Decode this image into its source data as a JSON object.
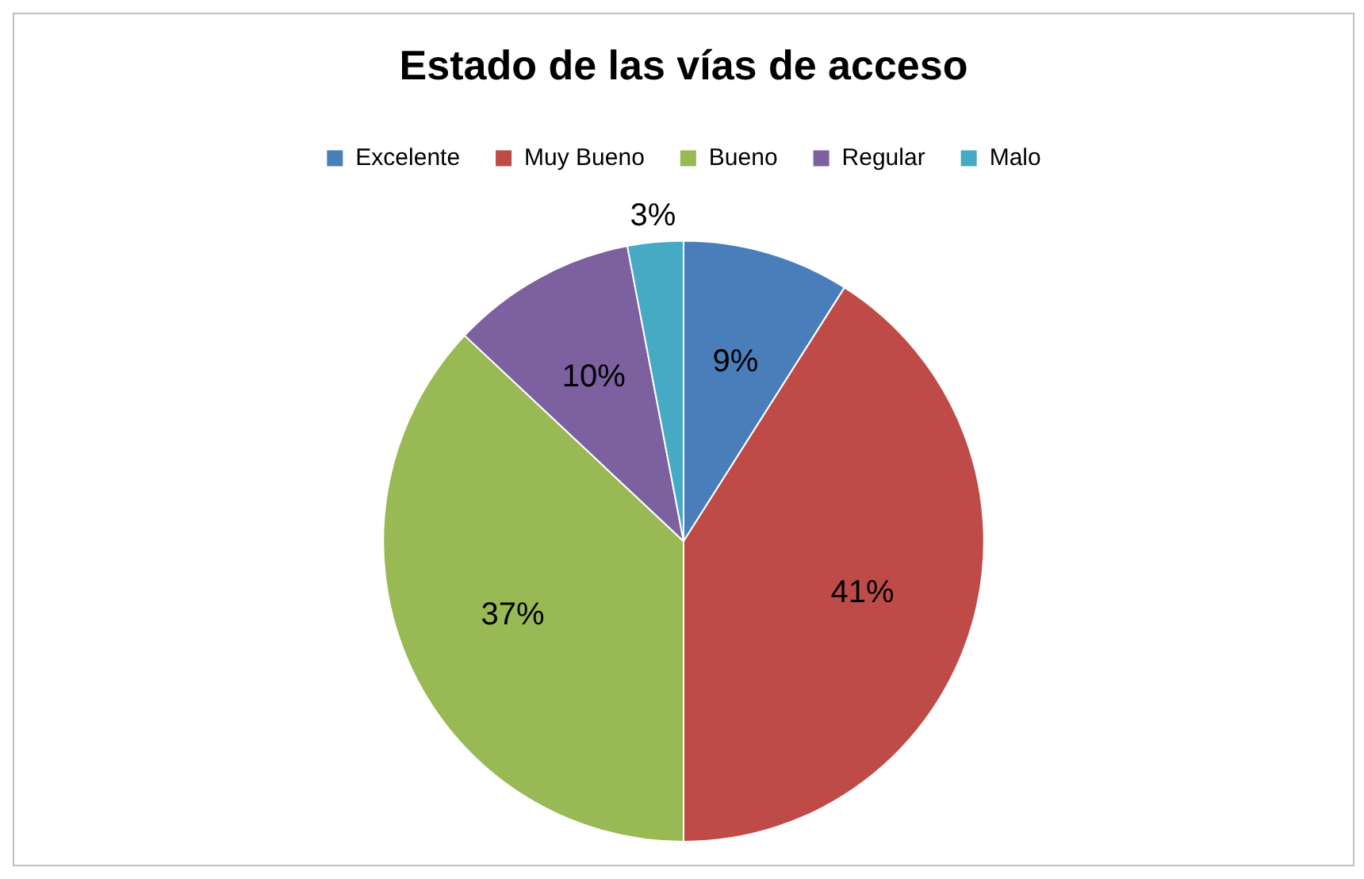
{
  "chart_data": {
    "type": "pie",
    "title": "Estado de las vías de acceso",
    "categories": [
      "Excelente",
      "Muy Bueno",
      "Bueno",
      "Regular",
      "Malo"
    ],
    "values": [
      9,
      41,
      37,
      10,
      3
    ],
    "value_labels": [
      "9%",
      "41%",
      "37%",
      "10%",
      "3%"
    ],
    "colors": [
      "#4a7ebb",
      "#be4b48",
      "#98b954",
      "#7d60a0",
      "#46aac5"
    ],
    "legend": "top"
  }
}
